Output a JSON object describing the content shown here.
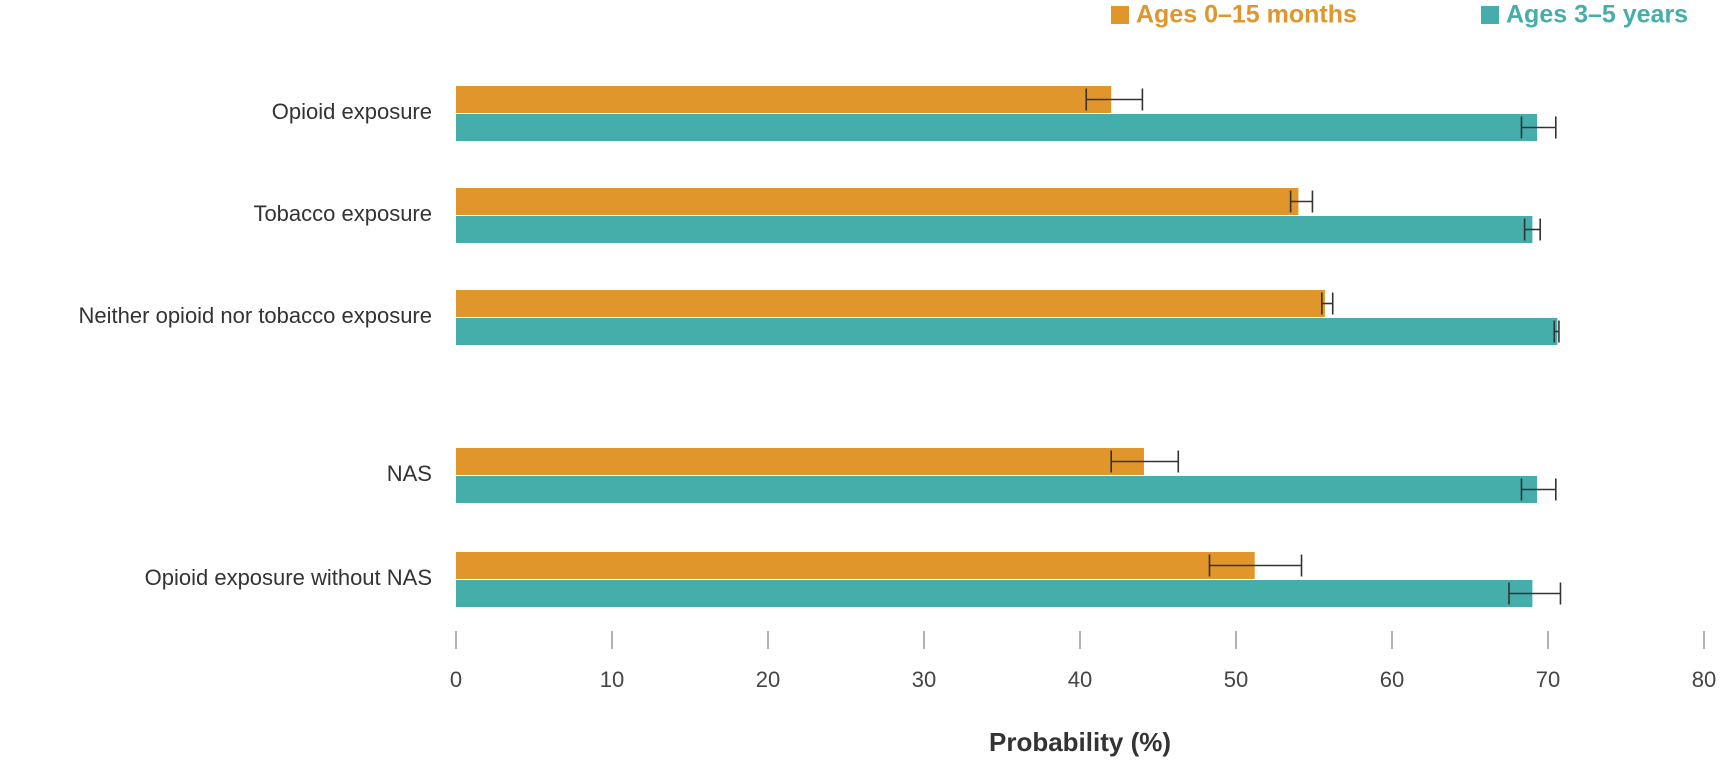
{
  "chart_data": {
    "type": "hbar",
    "xlabel": "Probability (%)",
    "categories": [
      "Opioid exposure",
      "Tobacco exposure",
      "Neither opioid nor tobacco exposure",
      "NAS",
      "Opioid exposure without NAS"
    ],
    "series": [
      {
        "name": "Ages 0–15 months",
        "color": "#e0962a",
        "values": [
          42.0,
          54.0,
          55.7,
          44.1,
          51.2
        ],
        "ci": [
          [
            40.4,
            44.0
          ],
          [
            53.5,
            54.9
          ],
          [
            55.5,
            56.2
          ],
          [
            42.0,
            46.3
          ],
          [
            48.3,
            54.2
          ]
        ]
      },
      {
        "name": "Ages 3–5 years",
        "color": "#45aeaa",
        "values": [
          69.3,
          69.0,
          70.6,
          69.3,
          69.0
        ],
        "ci": [
          [
            68.3,
            70.5
          ],
          [
            68.5,
            69.5
          ],
          [
            70.4,
            70.7
          ],
          [
            68.3,
            70.5
          ],
          [
            67.5,
            70.8
          ]
        ]
      }
    ],
    "xlim": [
      0,
      80
    ],
    "xticks": [
      0,
      10,
      20,
      30,
      40,
      50,
      60,
      70,
      80
    ],
    "legend": "top-right",
    "grid": false
  }
}
